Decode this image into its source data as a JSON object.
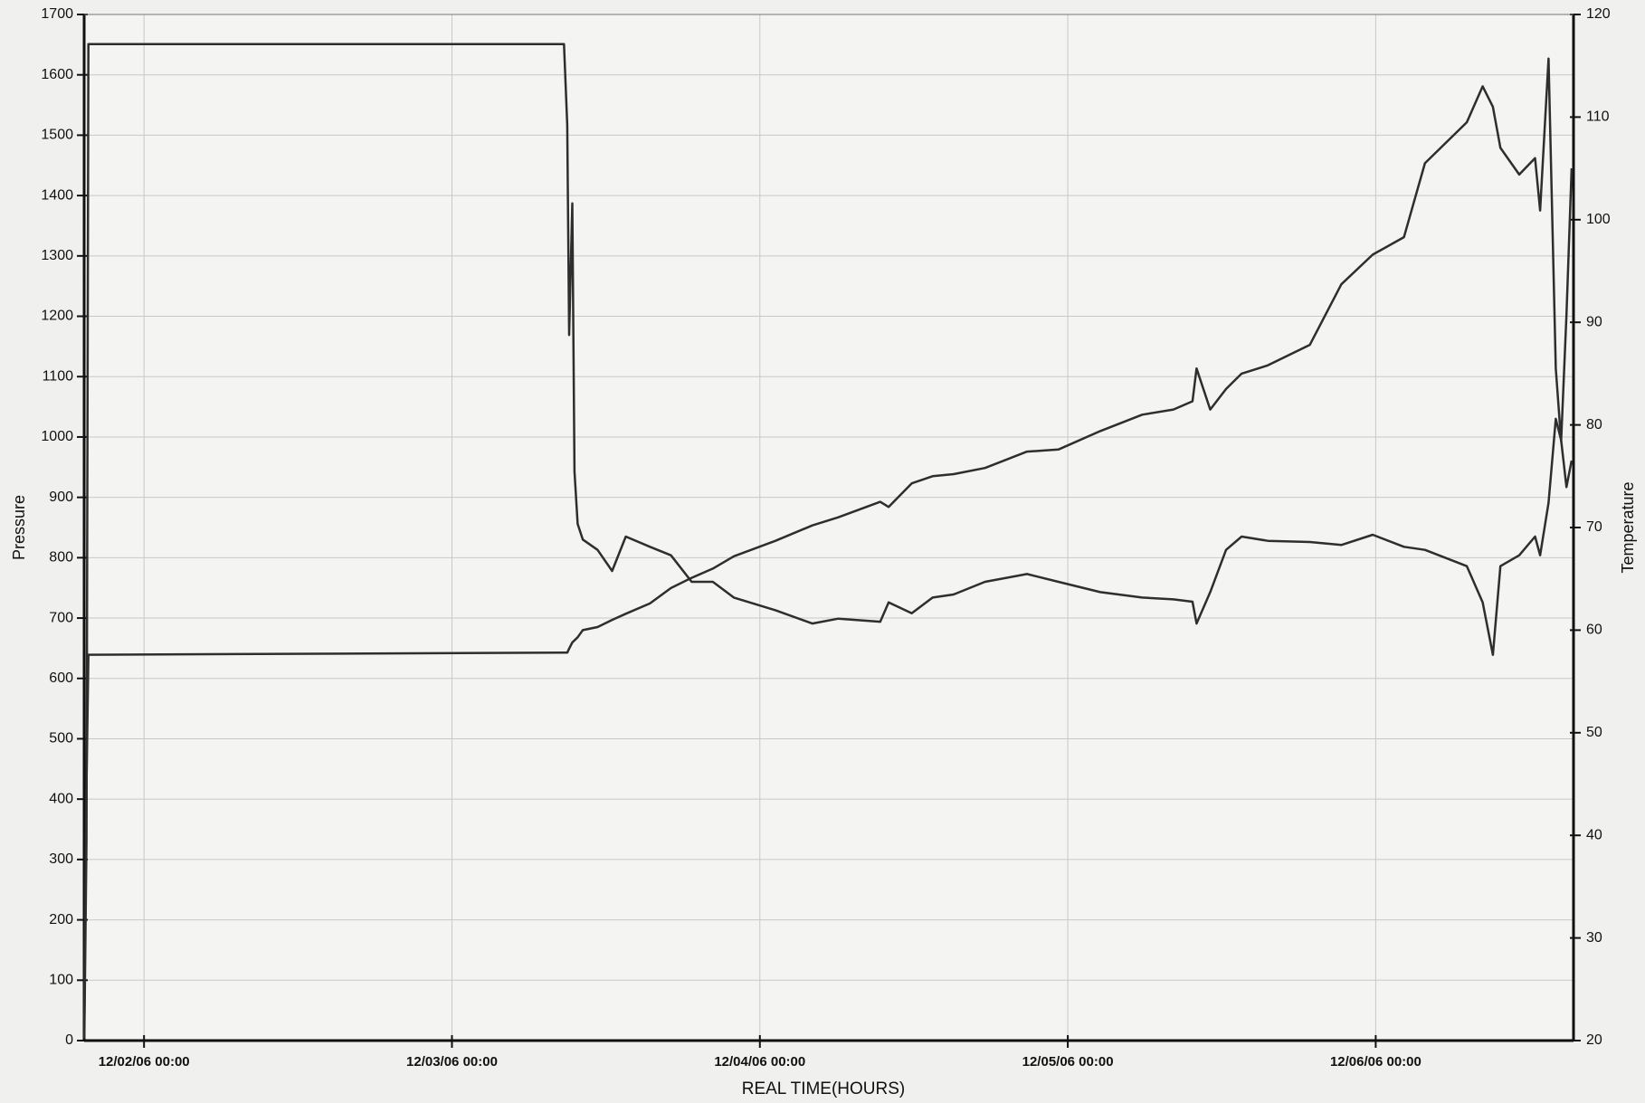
{
  "chart_data": {
    "type": "line",
    "x_label": "REAL TIME(HOURS)",
    "y_label": "Pressure",
    "y2_label": "Temperature",
    "x": [
      "12/01/06 19:21",
      "12/01/06 19:31",
      "12/01/06 19:40",
      "12/03/06 08:44",
      "12/03/06 08:59",
      "12/03/06 09:08",
      "12/03/06 09:23",
      "12/03/06 09:33",
      "12/03/06 09:48",
      "12/03/06 10:12",
      "12/03/06 11:21",
      "12/03/06 12:29",
      "12/03/06 13:33",
      "12/03/06 15:26",
      "12/03/06 17:04",
      "12/03/06 18:41",
      "12/03/06 20:20",
      "12/03/06 21:58",
      "12/04/06 01:13",
      "12/04/06 04:05",
      "12/04/06 06:07",
      "12/04/06 09:23",
      "12/04/06 10:02",
      "12/04/06 11:50",
      "12/04/06 13:28",
      "12/04/06 15:06",
      "12/04/06 17:33",
      "12/04/06 20:49",
      "12/04/06 23:16",
      "12/05/06 02:32",
      "12/05/06 05:48",
      "12/05/06 08:14",
      "12/05/06 09:43",
      "12/05/06 10:02",
      "12/05/06 11:06",
      "12/05/06 12:20",
      "12/05/06 13:33",
      "12/05/06 15:35",
      "12/05/06 18:52",
      "12/05/06 21:19",
      "12/05/06 23:46",
      "12/06/06 02:12",
      "12/06/06 03:50",
      "12/06/06 07:06",
      "12/06/06 08:20",
      "12/06/06 09:08",
      "12/06/06 09:43",
      "12/06/06 11:11",
      "12/06/06 12:25",
      "12/06/06 12:49",
      "12/06/06 13:28",
      "12/06/06 14:02",
      "12/06/06 14:27",
      "12/06/06 14:52",
      "12/06/06 15:16"
    ],
    "series": [
      {
        "color": "#2e2e2e",
        "axis": "y",
        "values": [
          3,
          334,
          1651,
          1651,
          1517,
          1169,
          1387,
          943,
          856,
          830,
          813,
          778,
          835,
          818,
          804,
          760,
          760,
          734,
          713,
          691,
          699,
          694,
          726,
          708,
          734,
          739,
          760,
          773,
          760,
          743,
          734,
          731,
          727,
          691,
          743,
          813,
          835,
          828,
          826,
          821,
          838,
          818,
          813,
          786,
          726,
          639,
          786,
          804,
          835,
          804,
          891,
          1030,
          995,
          917,
          961
        ]
      },
      {
        "color": "#2e2e2e",
        "axis": "y2",
        "values": [
          22,
          45,
          57.6,
          57.8,
          57.8,
          58.2,
          58.8,
          59,
          59.3,
          60,
          60.3,
          61,
          61.6,
          62.6,
          64.1,
          65.1,
          66,
          67.2,
          68.7,
          70.2,
          71,
          72.5,
          72,
          74.3,
          75,
          75.2,
          75.8,
          77.4,
          77.6,
          79.4,
          81,
          81.5,
          82.3,
          85.5,
          81.5,
          83.5,
          85,
          85.8,
          87.8,
          93.7,
          96.6,
          98.3,
          105.5,
          109.5,
          113,
          111,
          107,
          104.4,
          106,
          100.9,
          115.7,
          85.5,
          78.4,
          90.7,
          105
        ]
      }
    ],
    "xlim": [
      "12/01/06 19:20",
      "12/06/06 15:25"
    ],
    "xticks": [
      "12/02/06 00:00",
      "12/03/06 00:00",
      "12/04/06 00:00",
      "12/05/06 00:00",
      "12/06/06 00:00"
    ],
    "ylim": [
      0,
      1700
    ],
    "yticks": [
      0,
      100,
      200,
      300,
      400,
      500,
      600,
      700,
      800,
      900,
      1000,
      1100,
      1200,
      1300,
      1400,
      1500,
      1600,
      1700
    ],
    "y2lim": [
      20,
      120
    ],
    "y2ticks": [
      20,
      30,
      40,
      50,
      60,
      70,
      80,
      90,
      100,
      110,
      120
    ],
    "grid": true
  }
}
